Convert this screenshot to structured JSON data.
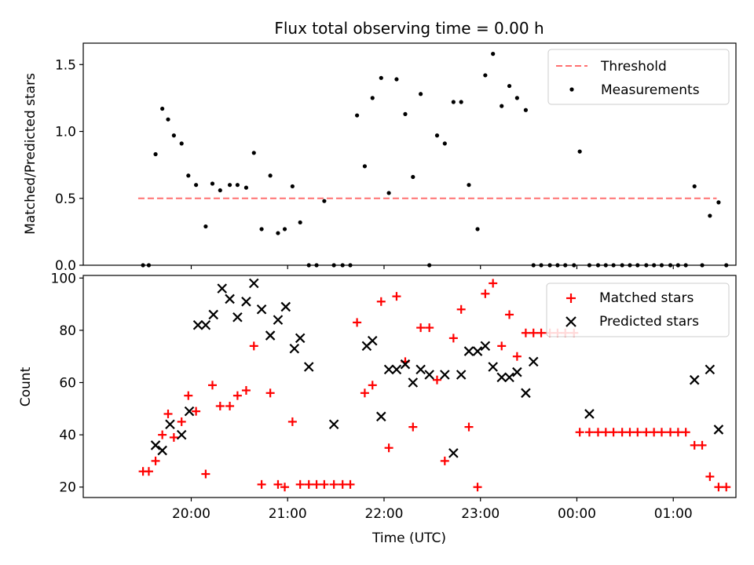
{
  "chart_data": [
    {
      "type": "scatter",
      "title": "Flux total observing time = 0.00 h",
      "xlabel": "",
      "ylabel": "Matched/Predicted stars",
      "xlim_hours": [
        18.88,
        25.65
      ],
      "ylim": [
        0,
        1.66
      ],
      "y_ticks": [
        0.0,
        0.5,
        1.0,
        1.5
      ],
      "y_tick_labels": [
        "0.0",
        "0.5",
        "1.0",
        "1.5"
      ],
      "legend": {
        "position": "top-right",
        "entries": [
          "Threshold",
          "Measurements"
        ]
      },
      "threshold": {
        "name": "Threshold",
        "y": 0.5,
        "x_range": [
          19.45,
          25.45
        ],
        "color": "#ff7070",
        "style": "dashed"
      },
      "series": [
        {
          "name": "Measurements",
          "color": "#000000",
          "marker": "dot",
          "x": [
            19.5,
            19.56,
            19.63,
            19.7,
            19.76,
            19.82,
            19.9,
            19.97,
            20.05,
            20.15,
            20.22,
            20.3,
            20.4,
            20.48,
            20.57,
            20.65,
            20.73,
            20.82,
            20.9,
            20.97,
            21.05,
            21.13,
            21.22,
            21.3,
            21.38,
            21.48,
            21.57,
            21.65,
            21.72,
            21.8,
            21.88,
            21.97,
            22.05,
            22.13,
            22.22,
            22.3,
            22.38,
            22.47,
            22.55,
            22.63,
            22.72,
            22.8,
            22.88,
            22.97,
            23.05,
            23.13,
            23.22,
            23.3,
            23.38,
            23.47,
            23.55,
            23.63,
            23.72,
            23.8,
            23.88,
            23.97,
            24.03,
            24.13,
            24.22,
            24.3,
            24.38,
            24.47,
            24.55,
            24.63,
            24.72,
            24.8,
            24.88,
            24.97,
            25.05,
            25.13,
            25.22,
            25.3,
            25.38,
            25.47,
            25.55
          ],
          "y": [
            0.0,
            0.0,
            0.83,
            1.17,
            1.09,
            0.97,
            0.91,
            0.67,
            0.6,
            0.29,
            0.61,
            0.56,
            0.6,
            0.6,
            0.58,
            0.84,
            0.27,
            0.67,
            0.24,
            0.27,
            0.59,
            0.32,
            0.0,
            0.0,
            0.48,
            0.0,
            0.0,
            0.0,
            1.12,
            0.74,
            1.25,
            1.4,
            0.54,
            1.39,
            1.13,
            0.66,
            1.28,
            0.0,
            0.97,
            0.91,
            1.22,
            1.22,
            0.6,
            0.27,
            1.42,
            1.58,
            1.19,
            1.34,
            1.25,
            1.16,
            0.0,
            0.0,
            0.0,
            0.0,
            0.0,
            0.0,
            0.85,
            0.0,
            0.0,
            0.0,
            0.0,
            0.0,
            0.0,
            0.0,
            0.0,
            0.0,
            0.0,
            0.0,
            0.0,
            0.0,
            0.59,
            0.0,
            0.37,
            0.47,
            0.0
          ]
        }
      ]
    },
    {
      "type": "scatter",
      "title": "",
      "xlabel": "Time (UTC)",
      "ylabel": "Count",
      "xlim_hours": [
        18.88,
        25.65
      ],
      "ylim": [
        16,
        101
      ],
      "y_ticks": [
        20,
        40,
        60,
        80,
        100
      ],
      "y_tick_labels": [
        "20",
        "40",
        "60",
        "80",
        "100"
      ],
      "x_ticks_hours": [
        20,
        21,
        22,
        23,
        24,
        25
      ],
      "x_tick_labels": [
        "20:00",
        "21:00",
        "22:00",
        "23:00",
        "00:00",
        "01:00"
      ],
      "legend": {
        "position": "top-right",
        "entries": [
          "Matched stars",
          "Predicted stars"
        ]
      },
      "series": [
        {
          "name": "Matched stars",
          "color": "#ff0000",
          "marker": "plus",
          "x": [
            19.5,
            19.56,
            19.63,
            19.7,
            19.76,
            19.82,
            19.9,
            19.97,
            20.05,
            20.15,
            20.22,
            20.3,
            20.4,
            20.48,
            20.57,
            20.65,
            20.73,
            20.82,
            20.9,
            20.97,
            21.05,
            21.13,
            21.22,
            21.3,
            21.38,
            21.48,
            21.57,
            21.65,
            21.72,
            21.8,
            21.88,
            21.97,
            22.05,
            22.13,
            22.22,
            22.3,
            22.38,
            22.47,
            22.55,
            22.63,
            22.72,
            22.8,
            22.88,
            22.97,
            23.05,
            23.13,
            23.22,
            23.3,
            23.38,
            23.47,
            23.55,
            23.63,
            23.72,
            23.8,
            23.88,
            23.97,
            24.03,
            24.13,
            24.22,
            24.3,
            24.38,
            24.47,
            24.55,
            24.63,
            24.72,
            24.8,
            24.88,
            24.97,
            25.05,
            25.13,
            25.22,
            25.3,
            25.38,
            25.47,
            25.55
          ],
          "y": [
            26,
            26,
            30,
            40,
            48,
            39,
            45,
            55,
            49,
            25,
            59,
            51,
            51,
            55,
            57,
            74,
            21,
            56,
            21,
            20,
            45,
            21,
            21,
            21,
            21,
            21,
            21,
            21,
            83,
            56,
            59,
            91,
            35,
            93,
            68,
            43,
            81,
            81,
            61,
            30,
            77,
            88,
            43,
            20,
            94,
            98,
            74,
            86,
            70,
            79,
            79,
            79,
            79,
            79,
            79,
            79,
            41,
            41,
            41,
            41,
            41,
            41,
            41,
            41,
            41,
            41,
            41,
            41,
            41,
            41,
            36,
            36,
            24,
            20,
            20
          ]
        },
        {
          "name": "Predicted stars",
          "color": "#000000",
          "marker": "x",
          "x": [
            19.63,
            19.7,
            19.78,
            19.9,
            19.98,
            20.07,
            20.15,
            20.23,
            20.32,
            20.4,
            20.48,
            20.57,
            20.65,
            20.73,
            20.82,
            20.9,
            20.98,
            21.07,
            21.13,
            21.22,
            21.48,
            21.82,
            21.88,
            21.97,
            22.05,
            22.13,
            22.22,
            22.3,
            22.38,
            22.47,
            22.63,
            22.72,
            22.8,
            22.88,
            22.97,
            23.05,
            23.13,
            23.22,
            23.3,
            23.38,
            23.47,
            23.55,
            24.13,
            25.22,
            25.38,
            25.47
          ],
          "y": [
            36,
            34,
            44,
            40,
            49,
            82,
            82,
            86,
            96,
            92,
            85,
            91,
            98,
            88,
            78,
            84,
            89,
            73,
            77,
            66,
            44,
            74,
            76,
            47,
            65,
            65,
            67,
            60,
            65,
            63,
            63,
            33,
            63,
            72,
            72,
            74,
            66,
            62,
            62,
            64,
            56,
            68,
            48,
            61,
            65,
            42
          ]
        }
      ]
    }
  ]
}
